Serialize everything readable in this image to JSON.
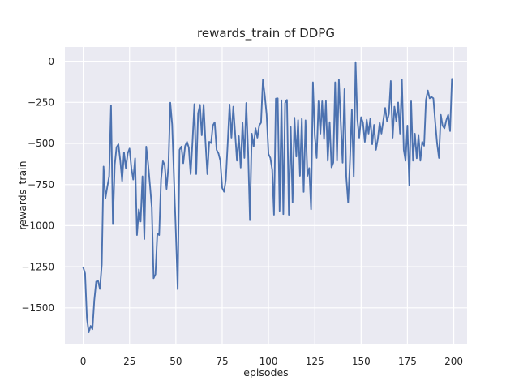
{
  "title": "rewards_train of DDPG",
  "axes": {
    "xlabel": "episodes",
    "ylabel": "rewards_train",
    "xtick_labels": [
      "0",
      "25",
      "50",
      "75",
      "100",
      "125",
      "150",
      "175",
      "200"
    ],
    "ytick_labels": [
      "0",
      "−250",
      "−500",
      "−750",
      "−1000",
      "−1250",
      "−1500"
    ]
  },
  "colors": {
    "line": "#4c72b0",
    "plot_background": "#eaeaf2",
    "grid": "#ffffff",
    "text": "#262626"
  },
  "chart_data": {
    "type": "line",
    "title": "rewards_train of DDPG",
    "xlabel": "episodes",
    "ylabel": "rewards_train",
    "legend": null,
    "grid": true,
    "x_start": 0,
    "x_step": 1,
    "xticks": [
      0,
      25,
      50,
      75,
      100,
      125,
      150,
      175,
      200
    ],
    "yticks": [
      0,
      -250,
      -500,
      -750,
      -1000,
      -1250,
      -1500
    ],
    "xlim": [
      -9.9,
      207.2
    ],
    "ylim": [
      -1718,
      87
    ],
    "y": [
      -1255,
      -1290,
      -1566,
      -1649,
      -1610,
      -1630,
      -1452,
      -1340,
      -1336,
      -1385,
      -1238,
      -640,
      -835,
      -764,
      -700,
      -268,
      -991,
      -629,
      -523,
      -505,
      -604,
      -728,
      -554,
      -650,
      -560,
      -531,
      -650,
      -720,
      -590,
      -1057,
      -901,
      -975,
      -700,
      -1082,
      -519,
      -620,
      -753,
      -890,
      -1320,
      -1296,
      -1049,
      -1057,
      -720,
      -608,
      -631,
      -777,
      -638,
      -252,
      -385,
      -720,
      -1049,
      -1386,
      -539,
      -519,
      -620,
      -515,
      -490,
      -525,
      -687,
      -490,
      -260,
      -687,
      -317,
      -265,
      -450,
      -264,
      -492,
      -687,
      -490,
      -498,
      -391,
      -371,
      -539,
      -560,
      -605,
      -770,
      -794,
      -720,
      -500,
      -263,
      -465,
      -276,
      -440,
      -605,
      -455,
      -647,
      -374,
      -588,
      -254,
      -555,
      -967,
      -440,
      -520,
      -407,
      -465,
      -390,
      -374,
      -112,
      -207,
      -325,
      -564,
      -588,
      -660,
      -934,
      -227,
      -225,
      -910,
      -237,
      -930,
      -253,
      -235,
      -934,
      -400,
      -860,
      -343,
      -580,
      -358,
      -697,
      -350,
      -795,
      -359,
      -697,
      -650,
      -901,
      -128,
      -450,
      -588,
      -243,
      -440,
      -243,
      -473,
      -242,
      -605,
      -370,
      -646,
      -617,
      -128,
      -605,
      -111,
      -370,
      -617,
      -169,
      -703,
      -860,
      -600,
      -293,
      -703,
      -5,
      -355,
      -465,
      -340,
      -373,
      -490,
      -355,
      -440,
      -347,
      -505,
      -387,
      -539,
      -473,
      -373,
      -440,
      -358,
      -284,
      -365,
      -320,
      -120,
      -465,
      -276,
      -365,
      -251,
      -440,
      -111,
      -539,
      -605,
      -391,
      -755,
      -243,
      -605,
      -440,
      -590,
      -448,
      -605,
      -490,
      -514,
      -235,
      -178,
      -225,
      -217,
      -225,
      -370,
      -500,
      -588,
      -326,
      -392,
      -408,
      -359,
      -326,
      -425,
      -107
    ]
  }
}
